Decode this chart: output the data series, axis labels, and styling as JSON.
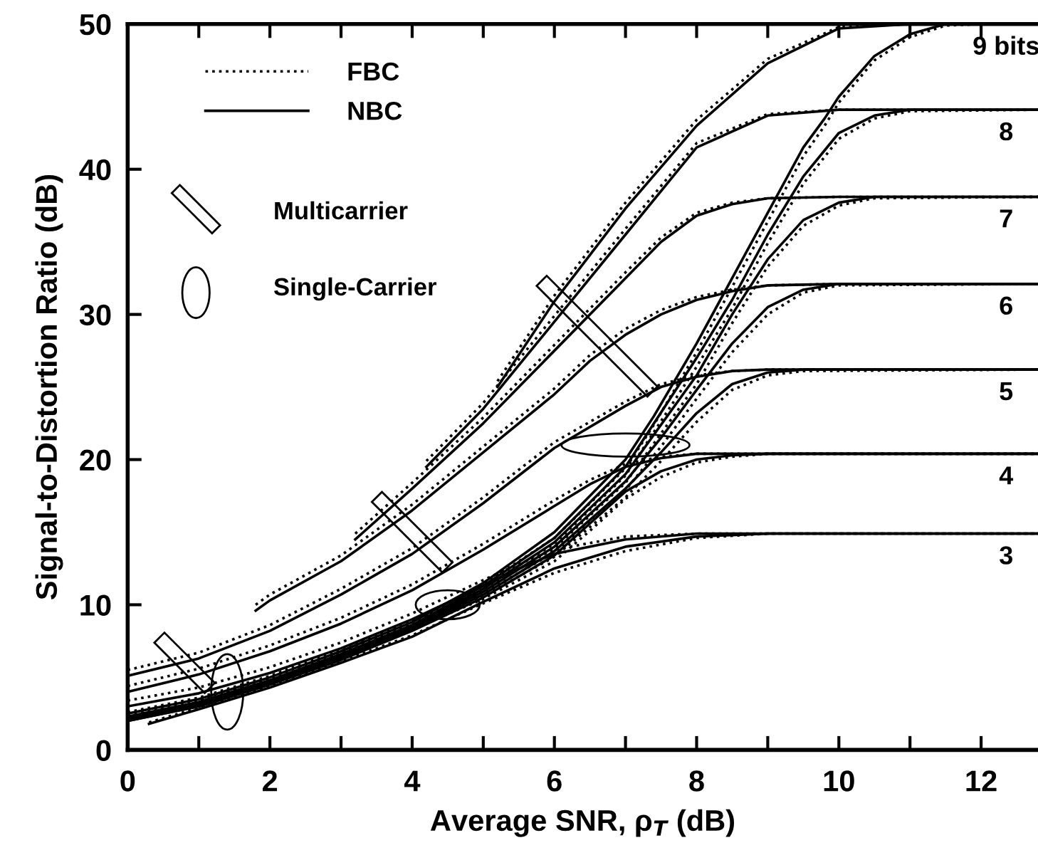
{
  "chart_data": {
    "type": "line",
    "xlabel": "Average SNR, ρ$_{T}$ (dB)",
    "ylabel": "Signal-to-Distortion Ratio (dB)",
    "xlim": [
      0,
      12.8
    ],
    "ylim": [
      0,
      50
    ],
    "xticks": [
      0,
      {
        "value": 1,
        "label": null
      },
      2,
      {
        "value": 3,
        "label": null
      },
      4,
      {
        "value": 5,
        "label": null
      },
      6,
      {
        "value": 7,
        "label": null
      },
      8,
      {
        "value": 9,
        "label": null
      },
      10,
      {
        "value": 11,
        "label": null
      },
      12
    ],
    "yticks": [
      0,
      10,
      20,
      30,
      40,
      50
    ],
    "grid": false,
    "legend": "top left",
    "marker": "none",
    "annotations": [
      "Multicarrier",
      "Single-Carrier",
      {
        "text": "9 bits",
        "y": 50
      },
      {
        "text": "8",
        "y": 44.1
      },
      {
        "text": "7",
        "y": 38.1
      },
      {
        "text": "6",
        "y": 32.1
      },
      {
        "text": "5",
        "y": 26.2
      },
      {
        "text": "4",
        "y": 20.4
      },
      {
        "text": "3",
        "y": 14.9
      }
    ],
    "series": [
      {
        "name": "FBC",
        "color": "#000000",
        "line_style": "dotted",
        "x": [
          5.2,
          6,
          7,
          8,
          9,
          10,
          11,
          12.8
        ],
        "values": [
          25.4,
          31.3,
          37.7,
          43.4,
          47.6,
          49.8,
          50,
          50
        ]
      },
      {
        "name": "NBC",
        "color": "#000000",
        "line_style": "solid",
        "x": [
          5.2,
          6,
          7,
          8,
          9,
          10,
          11,
          12.8
        ],
        "values": [
          25,
          30.9,
          37.3,
          43,
          47.3,
          49.7,
          50,
          50
        ]
      },
      {
        "color": "#000000",
        "line_style": "dotted",
        "x": [
          4.2,
          5,
          6,
          7,
          8,
          9,
          10,
          11,
          12.8
        ],
        "values": [
          19.9,
          23.9,
          29.9,
          35.9,
          41.8,
          43.8,
          44.1,
          44.1,
          44.1
        ]
      },
      {
        "color": "#000000",
        "line_style": "solid",
        "x": [
          4.2,
          5,
          6,
          7,
          8,
          9,
          10,
          11,
          12.8
        ],
        "values": [
          19.5,
          23.5,
          29.5,
          35.5,
          41.5,
          43.7,
          44.1,
          44.1,
          44.1
        ]
      },
      {
        "color": "#000000",
        "line_style": "dotted",
        "x": [
          3.2,
          4,
          5,
          6,
          7,
          7.5,
          8,
          8.5,
          9,
          10,
          12.8
        ],
        "values": [
          14.9,
          18.4,
          22.9,
          27.9,
          32.9,
          35.3,
          37,
          37.7,
          38,
          38.1,
          38.1
        ]
      },
      {
        "color": "#000000",
        "line_style": "solid",
        "x": [
          3.2,
          4,
          5,
          6,
          7,
          7.5,
          8,
          8.5,
          9,
          10,
          12.8
        ],
        "values": [
          14.5,
          18,
          22.5,
          27.5,
          32.5,
          35,
          36.8,
          37.6,
          38,
          38.1,
          38.1
        ]
      },
      {
        "color": "#000000",
        "line_style": "dotted",
        "x": [
          1.8,
          2,
          3,
          4,
          5,
          6,
          6.5,
          7,
          7.5,
          8,
          8.5,
          9,
          10,
          12.8
        ],
        "values": [
          10,
          10.7,
          13.4,
          16.9,
          20.9,
          24.9,
          27.2,
          29,
          30.3,
          31.2,
          31.7,
          32,
          32.1,
          32.1
        ]
      },
      {
        "color": "#000000",
        "line_style": "solid",
        "x": [
          1.8,
          2,
          3,
          4,
          5,
          6,
          6.5,
          7,
          7.5,
          8,
          8.5,
          9,
          10,
          12.8
        ],
        "values": [
          9.6,
          10.3,
          13,
          16.5,
          20.5,
          24.5,
          26.8,
          28.6,
          30,
          31,
          31.6,
          32,
          32.1,
          32.1
        ]
      },
      {
        "color": "#000000",
        "line_style": "dotted",
        "x": [
          0,
          1,
          2,
          3,
          4,
          5,
          6,
          7,
          7.5,
          8,
          8.5,
          9,
          12.8
        ],
        "values": [
          5.5,
          6.7,
          8.6,
          11.1,
          13.9,
          17.4,
          21.2,
          24,
          25.2,
          25.8,
          26.1,
          26.2,
          26.2
        ]
      },
      {
        "color": "#000000",
        "line_style": "solid",
        "x": [
          0,
          1,
          2,
          3,
          4,
          5,
          6,
          7,
          7.5,
          8,
          8.5,
          9,
          12.8
        ],
        "values": [
          5.1,
          6.3,
          8.2,
          10.7,
          13.5,
          17,
          20.8,
          23.7,
          25,
          25.7,
          26.1,
          26.2,
          26.2
        ]
      },
      {
        "color": "#000000",
        "line_style": "dotted",
        "x": [
          0,
          1,
          2,
          3,
          4,
          5,
          6,
          6.5,
          7,
          7.5,
          8,
          12.8
        ],
        "values": [
          4.4,
          5.6,
          7.2,
          9.1,
          11.4,
          14.2,
          17.2,
          18.6,
          19.7,
          20.2,
          20.4,
          20.4
        ]
      },
      {
        "color": "#000000",
        "line_style": "solid",
        "x": [
          0,
          1,
          2,
          3,
          4,
          5,
          6,
          6.5,
          7,
          7.5,
          8,
          12.8
        ],
        "values": [
          4,
          5.2,
          6.8,
          8.7,
          11,
          13.8,
          16.8,
          18.3,
          19.5,
          20.1,
          20.4,
          20.4
        ]
      },
      {
        "color": "#000000",
        "line_style": "dotted",
        "x": [
          0,
          1,
          2,
          3,
          4,
          5,
          5.5,
          6,
          7,
          8,
          12.8
        ],
        "values": [
          3.4,
          4.3,
          5.7,
          7.4,
          9.4,
          11.7,
          12.8,
          13.8,
          14.7,
          14.9,
          14.9
        ]
      },
      {
        "color": "#000000",
        "line_style": "solid",
        "x": [
          0,
          1,
          2,
          3,
          4,
          5,
          5.5,
          6,
          7,
          8,
          12.8
        ],
        "values": [
          3,
          3.9,
          5.3,
          7,
          9,
          11.3,
          12.5,
          13.5,
          14.5,
          14.9,
          14.9
        ]
      },
      {
        "color": "#000000",
        "line_style": "dotted",
        "x": [
          0,
          1,
          2,
          3,
          4,
          5,
          6,
          7,
          7.4,
          8,
          8.5,
          9,
          9.5,
          9.8,
          10,
          10.5,
          11,
          11.5,
          12,
          12.8
        ],
        "values": [
          2.6,
          3.6,
          5.1,
          6.9,
          8.9,
          11.4,
          14.6,
          19.4,
          22.4,
          27.4,
          31.9,
          36.4,
          40.9,
          43,
          44.6,
          47.5,
          49.1,
          49.9,
          50,
          50
        ]
      },
      {
        "color": "#000000",
        "line_style": "solid",
        "x": [
          0,
          1,
          2,
          3,
          4,
          5,
          6,
          7,
          7.4,
          8,
          8.5,
          9,
          9.5,
          9.8,
          10,
          10.5,
          11,
          11.5,
          12,
          12.8
        ],
        "values": [
          2.5,
          3.5,
          5,
          6.8,
          8.8,
          11.5,
          15,
          20,
          23,
          28,
          32.5,
          37,
          41.5,
          43.5,
          45,
          47.8,
          49.3,
          50,
          50,
          50
        ]
      },
      {
        "color": "#000000",
        "line_style": "dotted",
        "x": [
          0,
          1,
          2,
          3,
          4,
          5,
          6,
          7,
          8,
          8.5,
          9,
          9.5,
          10,
          10.5,
          11,
          12.8
        ],
        "values": [
          2.4,
          3.4,
          4.9,
          6.7,
          8.7,
          11.2,
          14.2,
          18.9,
          26.4,
          30.4,
          34.9,
          39,
          42.1,
          43.5,
          44,
          44.1
        ]
      },
      {
        "color": "#000000",
        "line_style": "solid",
        "x": [
          0,
          1,
          2,
          3,
          4,
          5,
          6,
          7,
          8,
          8.5,
          9,
          9.5,
          10,
          10.5,
          11,
          12.8
        ],
        "values": [
          2.3,
          3.3,
          4.8,
          6.6,
          8.6,
          11.3,
          14.6,
          19.5,
          27,
          31,
          35.5,
          39.5,
          42.5,
          43.7,
          44.1,
          44.1
        ]
      },
      {
        "color": "#000000",
        "line_style": "dotted",
        "x": [
          0,
          1,
          2,
          3,
          4,
          5,
          6,
          7,
          8,
          8.5,
          9,
          9.5,
          10,
          10.5,
          12.8
        ],
        "values": [
          2.3,
          3.3,
          4.8,
          6.6,
          8.6,
          11,
          13.9,
          18.4,
          25.2,
          29.4,
          33.3,
          36.1,
          37.5,
          38,
          38.1
        ]
      },
      {
        "color": "#000000",
        "line_style": "solid",
        "x": [
          0,
          1,
          2,
          3,
          4,
          5,
          6,
          7,
          8,
          8.5,
          9,
          9.5,
          10,
          10.5,
          12.8
        ],
        "values": [
          2.2,
          3.2,
          4.7,
          6.5,
          8.5,
          11.1,
          14.3,
          19,
          25.8,
          30,
          33.8,
          36.5,
          37.7,
          38.1,
          38.1
        ]
      },
      {
        "color": "#000000",
        "line_style": "dotted",
        "x": [
          0,
          1,
          2,
          3,
          4,
          5,
          6,
          7,
          7.5,
          8,
          8.5,
          9,
          9.5,
          10,
          12.8
        ],
        "values": [
          2.2,
          3.2,
          4.7,
          6.5,
          8.5,
          10.8,
          13.6,
          17.9,
          20.9,
          24.2,
          27.4,
          30,
          31.5,
          32,
          32.1
        ]
      },
      {
        "color": "#000000",
        "line_style": "solid",
        "x": [
          0,
          1,
          2,
          3,
          4,
          5,
          6,
          7,
          7.5,
          8,
          8.5,
          9,
          9.5,
          10,
          12.8
        ],
        "values": [
          2.1,
          3.1,
          4.6,
          6.4,
          8.4,
          10.9,
          14,
          18.5,
          21.5,
          24.8,
          28,
          30.5,
          31.7,
          32.1,
          32.1
        ]
      },
      {
        "color": "#000000",
        "line_style": "dotted",
        "x": [
          0,
          1,
          2,
          3,
          4,
          5,
          6,
          7,
          7.5,
          8,
          8.5,
          9,
          9.5,
          12.8
        ],
        "values": [
          2.1,
          3.1,
          4.6,
          6.4,
          8.4,
          10.6,
          13.3,
          17.4,
          19.9,
          22.6,
          24.8,
          25.8,
          26.1,
          26.2
        ]
      },
      {
        "color": "#000000",
        "line_style": "solid",
        "x": [
          0,
          1,
          2,
          3,
          4,
          5,
          6,
          7,
          7.5,
          8,
          8.5,
          9,
          9.5,
          12.8
        ],
        "values": [
          2,
          3,
          4.5,
          6.3,
          8.3,
          10.7,
          13.7,
          18,
          20.5,
          23.2,
          25.2,
          26,
          26.2,
          26.2
        ]
      },
      {
        "color": "#000000",
        "line_style": "dotted",
        "x": [
          0,
          1,
          2,
          3,
          4,
          5,
          6,
          6.5,
          7,
          7.5,
          8,
          8.5,
          9,
          12.8
        ],
        "values": [
          2.1,
          3.1,
          4.6,
          6.3,
          8.3,
          10.4,
          13,
          15.1,
          17.3,
          18.8,
          19.8,
          20.2,
          20.4,
          20.4
        ]
      },
      {
        "color": "#000000",
        "line_style": "solid",
        "x": [
          0,
          1,
          2,
          3,
          4,
          5,
          6,
          6.5,
          7,
          7.5,
          8,
          8.5,
          9,
          12.8
        ],
        "values": [
          2,
          3,
          4.5,
          6.2,
          8.2,
          10.5,
          13.4,
          15.6,
          17.8,
          19.2,
          20,
          20.3,
          20.4,
          20.4
        ]
      },
      {
        "color": "#000000",
        "line_style": "dotted",
        "x": [
          0.3,
          1,
          2,
          3,
          4,
          5,
          6,
          7,
          8,
          9,
          12.8
        ],
        "values": [
          1.9,
          2.9,
          4.4,
          6.1,
          7.9,
          10.1,
          12.2,
          13.7,
          14.6,
          14.9,
          14.9
        ]
      },
      {
        "color": "#000000",
        "line_style": "solid",
        "x": [
          0.3,
          1,
          2,
          3,
          4,
          5,
          6,
          7,
          8,
          9,
          12.8
        ],
        "values": [
          1.8,
          2.8,
          4.3,
          6,
          7.8,
          10.2,
          12.5,
          14,
          14.7,
          14.9,
          14.9
        ]
      }
    ]
  }
}
